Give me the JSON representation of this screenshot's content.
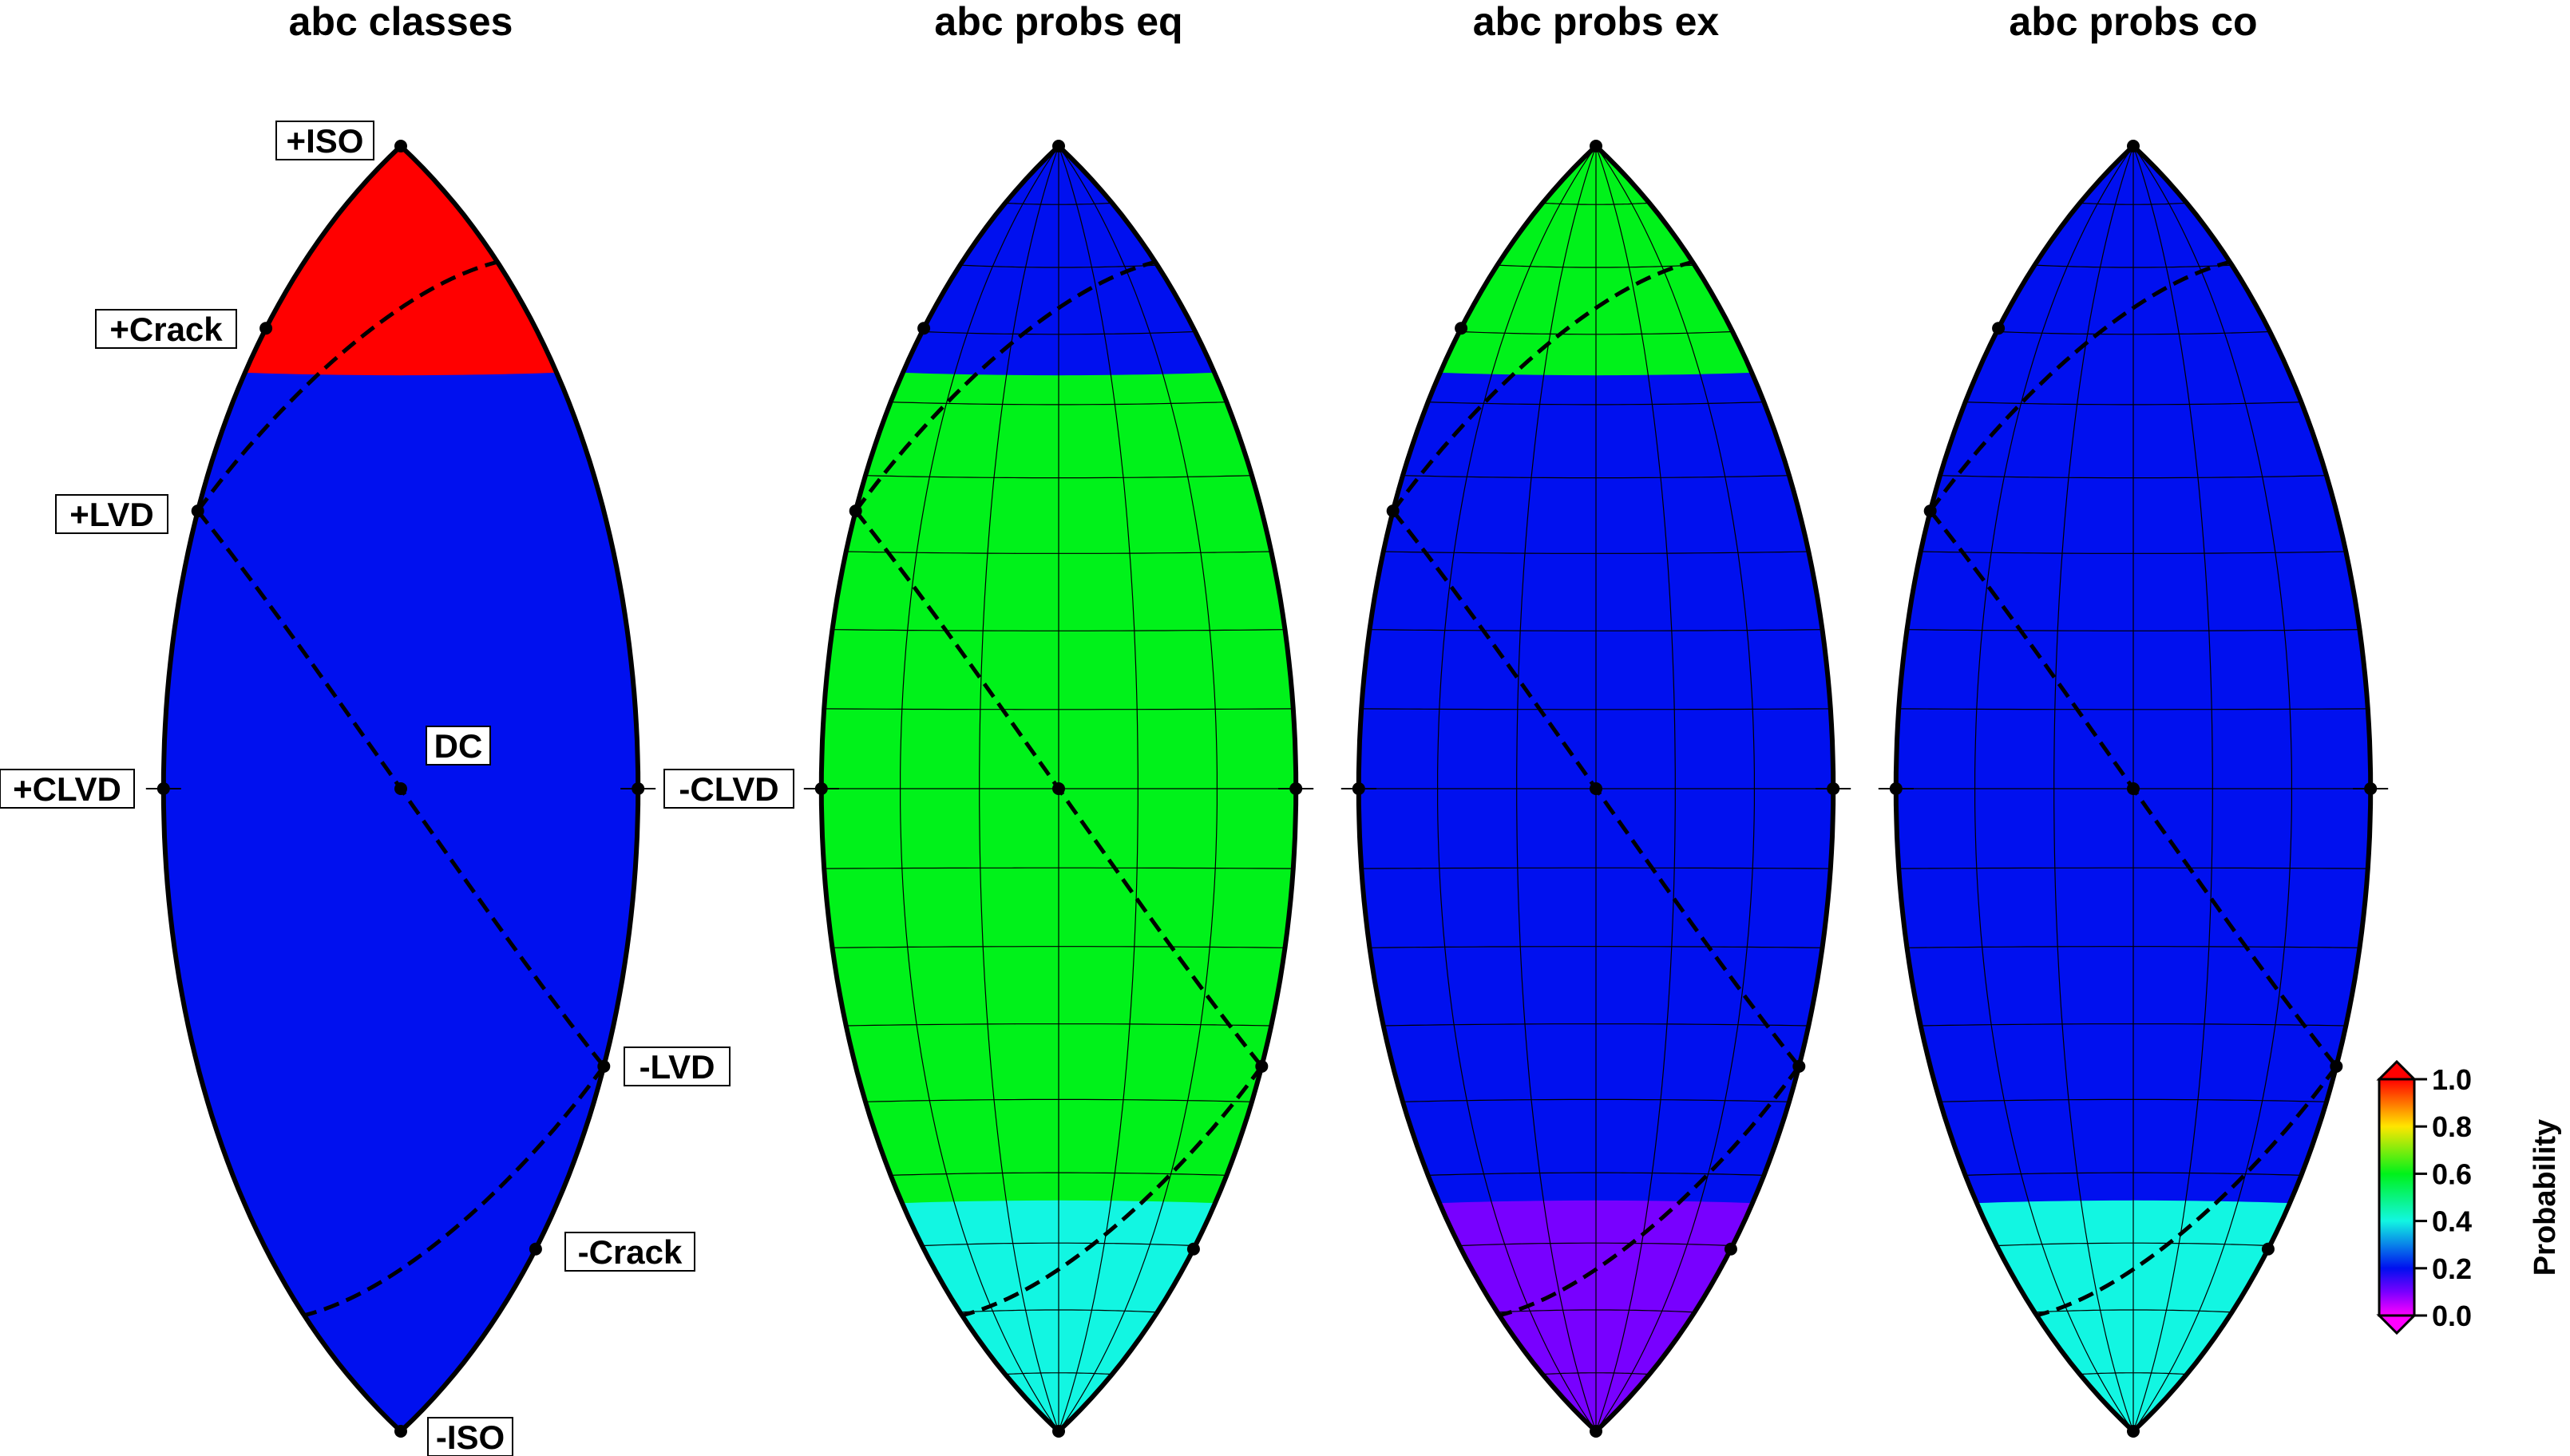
{
  "panels": [
    {
      "title": "abc classes",
      "fill": "classes"
    },
    {
      "title": "abc probs eq",
      "fill": "eq"
    },
    {
      "title": "abc probs ex",
      "fill": "ex"
    },
    {
      "title": "abc probs co",
      "fill": "co"
    }
  ],
  "lune_labels": {
    "iso_pos": "+ISO",
    "iso_neg": "-ISO",
    "crack_pos": "+Crack",
    "crack_neg": "-Crack",
    "lvd_pos": "+LVD",
    "lvd_neg": "-LVD",
    "clvd_pos": "+CLVD",
    "clvd_neg": "-CLVD",
    "dc": "DC"
  },
  "colorbar": {
    "title": "Probability",
    "ticks": [
      "1.0",
      "0.8",
      "0.6",
      "0.4",
      "0.2",
      "0.0"
    ]
  },
  "colors": {
    "red": "#ff0000",
    "blue": "#0010ef",
    "green": "#00f21a",
    "cyan": "#12f6e2",
    "purple": "#3c10f0"
  },
  "chart_data": {
    "type": "heatmap",
    "projection": "lune (Hammer)",
    "colormap_range": [
      0.0,
      1.0
    ],
    "classes": [
      {
        "lat_range": [
          90,
          54
        ],
        "class": "ex",
        "color": "#ff0000"
      },
      {
        "lat_range": [
          54,
          -90
        ],
        "class": "eq",
        "color": "#0010ef"
      }
    ],
    "probabilities": {
      "eq": [
        {
          "lat_range": [
            90,
            54
          ],
          "p": 0.2
        },
        {
          "lat_range": [
            54,
            -54
          ],
          "p": 0.6
        },
        {
          "lat_range": [
            -54,
            -90
          ],
          "p": 0.4
        }
      ],
      "ex": [
        {
          "lat_range": [
            90,
            54
          ],
          "p": 0.6
        },
        {
          "lat_range": [
            54,
            -54
          ],
          "p": 0.2
        },
        {
          "lat_range": [
            -54,
            -90
          ],
          "p": 0.1
        }
      ],
      "co": [
        {
          "lat_range": [
            90,
            -54
          ],
          "p": 0.2
        },
        {
          "lat_range": [
            -54,
            -90
          ],
          "p": 0.4
        }
      ]
    }
  }
}
